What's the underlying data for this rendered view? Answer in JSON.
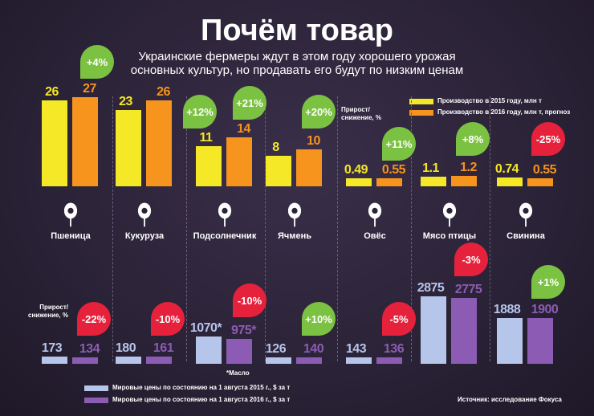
{
  "title": "Почём товар",
  "subtitle_line1": "Украинские фермеры ждут в этом году хорошего урожая",
  "subtitle_line2": "основных культур, но продавать его будут по низким ценам",
  "growth_label": "Прирост/ снижение, %",
  "oil_note": "*Масло",
  "source": "Источник: исследование Фокуса",
  "colors": {
    "prod2015": "#f5e826",
    "prod2016": "#f7941d",
    "price2015": "#b6c5ea",
    "price2016": "#8c5cb4",
    "up": "#7cc242",
    "down": "#e6213c"
  },
  "chart_data": [
    {
      "type": "bar",
      "title": "",
      "categories": [
        "Пшеница",
        "Кукуруза",
        "Подсолнечник",
        "Ячмень",
        "Овёс",
        "Мясо птицы",
        "Свинина"
      ],
      "icons": [
        "wheat-icon",
        "corn-icon",
        "sunflower-icon",
        "barley-icon",
        "oats-icon",
        "chicken-icon",
        "pig-icon"
      ],
      "series": [
        {
          "name": "Производство в 2015 году, млн т",
          "values": [
            26,
            23,
            11,
            8,
            0.49,
            1.1,
            0.74
          ],
          "labels": [
            "26",
            "23",
            "11",
            "8",
            "0.49",
            "1.1",
            "0.74"
          ]
        },
        {
          "name": "Производство в 2016 году, млн т, прогноз",
          "values": [
            27,
            26,
            14,
            10,
            0.55,
            1.2,
            0.55
          ],
          "labels": [
            "27",
            "26",
            "14",
            "10",
            "0.55",
            "1.2",
            "0.55"
          ]
        }
      ],
      "change": [
        "+4%",
        "+12%",
        "+21%",
        "+20%",
        "+11%",
        "+8%",
        "-25%"
      ]
    },
    {
      "type": "bar",
      "title": "",
      "categories": [
        "Пшеница",
        "Кукуруза",
        "Подсолнечник",
        "Ячмень",
        "Овёс",
        "Мясо птицы",
        "Свинина"
      ],
      "series": [
        {
          "name": "Мировые цены по состоянию на 1 августа 2015 г., $ за т",
          "values": [
            173,
            180,
            1070,
            126,
            143,
            2875,
            1888
          ],
          "labels": [
            "173",
            "180",
            "1070*",
            "126",
            "143",
            "2875",
            "1888"
          ]
        },
        {
          "name": "Мировые цены по состоянию на 1 августа 2016 г., $ за т",
          "values": [
            134,
            161,
            975,
            140,
            136,
            2775,
            1900
          ],
          "labels": [
            "134",
            "161",
            "975*",
            "140",
            "136",
            "2775",
            "1900"
          ]
        }
      ],
      "change": [
        "-22%",
        "-10%",
        "-10%",
        "+10%",
        "-5%",
        "-3%",
        "+1%"
      ]
    }
  ]
}
